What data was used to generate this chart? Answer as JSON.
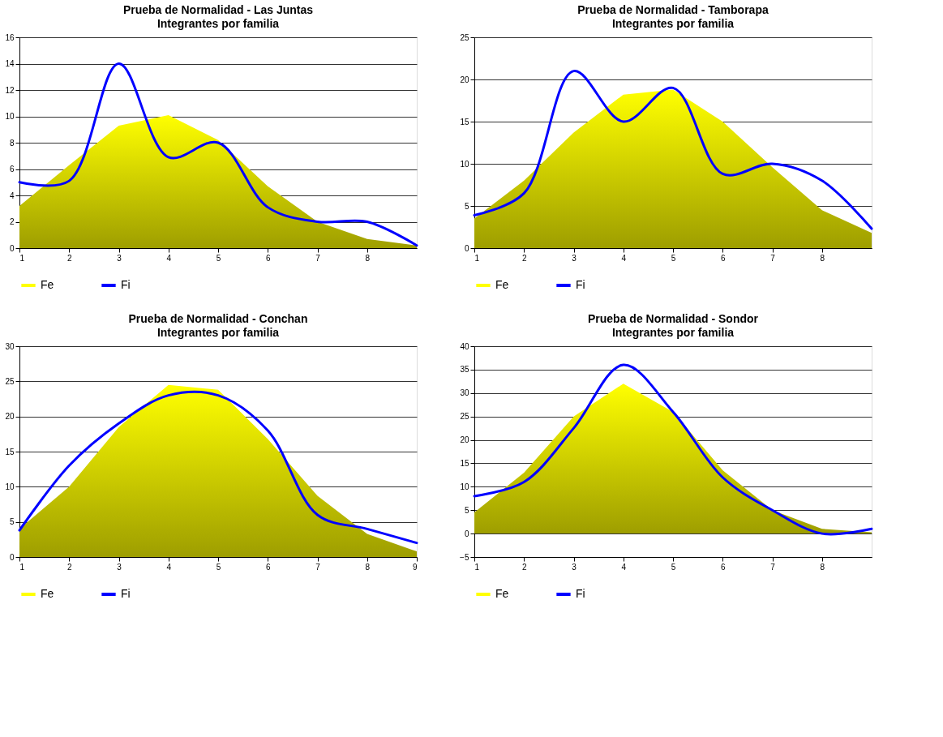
{
  "chart_data": [
    {
      "type": "area",
      "title": "Prueba de Normalidad - Las Juntas",
      "subtitle": "Integrantes por familia",
      "x": [
        1,
        2,
        3,
        4,
        5,
        6,
        7,
        8,
        9
      ],
      "xlim": [
        1,
        9
      ],
      "xticks": [
        1,
        2,
        3,
        4,
        5,
        6,
        7,
        8
      ],
      "ylim": [
        0,
        16
      ],
      "yticks": [
        0,
        2,
        4,
        6,
        8,
        10,
        12,
        14,
        16
      ],
      "grid": "y",
      "legend": "bottom",
      "series": [
        {
          "name": "Fe",
          "color": "#ffff00",
          "values": [
            3.2,
            6.3,
            9.3,
            10.1,
            8.2,
            4.7,
            2,
            0.7,
            0.2
          ]
        },
        {
          "name": "Fi",
          "type": "line",
          "color": "#0000ff",
          "values": [
            5,
            5.1,
            14,
            6.9,
            8,
            3.1,
            2,
            2,
            0.2
          ]
        }
      ]
    },
    {
      "type": "area",
      "title": "Prueba de Normalidad - Tamborapa",
      "subtitle": "Integrantes por familia",
      "x": [
        1,
        2,
        3,
        4,
        5,
        6,
        7,
        8,
        9
      ],
      "xlim": [
        1,
        9
      ],
      "xticks": [
        1,
        2,
        3,
        4,
        5,
        6,
        7,
        8
      ],
      "ylim": [
        0,
        25
      ],
      "yticks": [
        0,
        5,
        10,
        15,
        20,
        25
      ],
      "grid": "y",
      "legend": "bottom",
      "series": [
        {
          "name": "Fe",
          "color": "#ffff00",
          "values": [
            3.5,
            8,
            13.7,
            18.2,
            18.8,
            15,
            9.6,
            4.5,
            1.8
          ]
        },
        {
          "name": "Fi",
          "type": "line",
          "color": "#0000ff",
          "values": [
            3.9,
            6.5,
            21,
            15,
            19,
            8.8,
            10,
            8,
            2.3
          ]
        }
      ]
    },
    {
      "type": "area",
      "title": "Prueba de Normalidad - Conchan",
      "subtitle": "Integrantes por familia",
      "x": [
        1,
        2,
        3,
        4,
        5,
        6,
        7,
        8,
        9
      ],
      "xlim": [
        1,
        9
      ],
      "xticks": [
        1,
        2,
        3,
        4,
        5,
        6,
        7,
        8,
        9
      ],
      "ylim": [
        0,
        30
      ],
      "yticks": [
        0,
        5,
        10,
        15,
        20,
        25,
        30
      ],
      "grid": "y",
      "legend": "bottom",
      "series": [
        {
          "name": "Fe",
          "color": "#ffff00",
          "values": [
            4,
            10,
            18.5,
            24.5,
            23.8,
            16.8,
            8.7,
            3.3,
            0.8
          ]
        },
        {
          "name": "Fi",
          "type": "line",
          "color": "#0000ff",
          "values": [
            3.8,
            13,
            19,
            23,
            23,
            18,
            6,
            4,
            2
          ]
        }
      ]
    },
    {
      "type": "area",
      "title": "Prueba de Normalidad - Sondor",
      "subtitle": "Integrantes por familia",
      "x": [
        1,
        2,
        3,
        4,
        5,
        6,
        7,
        8,
        9
      ],
      "xlim": [
        1,
        9
      ],
      "xticks": [
        1,
        2,
        3,
        4,
        5,
        6,
        7,
        8
      ],
      "ylim": [
        -5,
        40
      ],
      "yticks": [
        -5,
        0,
        5,
        10,
        15,
        20,
        25,
        30,
        35,
        40
      ],
      "grid": "y",
      "legend": "bottom",
      "series": [
        {
          "name": "Fe",
          "color": "#ffff00",
          "values": [
            4.5,
            13,
            25,
            32,
            26,
            13.5,
            5,
            1,
            0.3
          ]
        },
        {
          "name": "Fi",
          "type": "line",
          "color": "#0000ff",
          "values": [
            8,
            11,
            22.5,
            36,
            26,
            12,
            5,
            0,
            1
          ]
        }
      ]
    }
  ]
}
